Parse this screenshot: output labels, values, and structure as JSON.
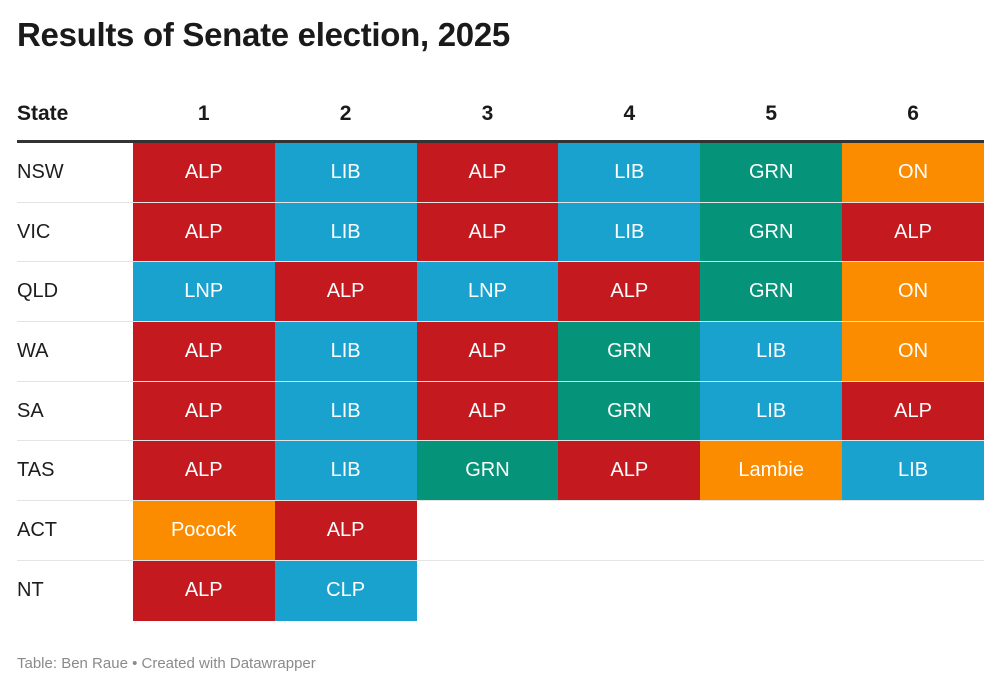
{
  "title": "Results of Senate election, 2025",
  "footer": "Table: Ben Raue • Created with Datawrapper",
  "colors": {
    "ALP": "#c41a1f",
    "LIB": "#1aa2cf",
    "LNP": "#1aa2cf",
    "CLP": "#1aa2cf",
    "GRN": "#059379",
    "ON": "#fb8c00",
    "Lambie": "#fb8c00",
    "Pocock": "#fb8c00"
  },
  "chart_data": {
    "type": "table",
    "columns": [
      "State",
      "1",
      "2",
      "3",
      "4",
      "5",
      "6"
    ],
    "rows": [
      {
        "state": "NSW",
        "cells": [
          "ALP",
          "LIB",
          "ALP",
          "LIB",
          "GRN",
          "ON"
        ]
      },
      {
        "state": "VIC",
        "cells": [
          "ALP",
          "LIB",
          "ALP",
          "LIB",
          "GRN",
          "ALP"
        ]
      },
      {
        "state": "QLD",
        "cells": [
          "LNP",
          "ALP",
          "LNP",
          "ALP",
          "GRN",
          "ON"
        ]
      },
      {
        "state": "WA",
        "cells": [
          "ALP",
          "LIB",
          "ALP",
          "GRN",
          "LIB",
          "ON"
        ]
      },
      {
        "state": "SA",
        "cells": [
          "ALP",
          "LIB",
          "ALP",
          "GRN",
          "LIB",
          "ALP"
        ]
      },
      {
        "state": "TAS",
        "cells": [
          "ALP",
          "LIB",
          "GRN",
          "ALP",
          "Lambie",
          "LIB"
        ]
      },
      {
        "state": "ACT",
        "cells": [
          "Pocock",
          "ALP",
          "",
          "",
          "",
          ""
        ]
      },
      {
        "state": "NT",
        "cells": [
          "ALP",
          "CLP",
          "",
          "",
          "",
          ""
        ]
      }
    ]
  }
}
